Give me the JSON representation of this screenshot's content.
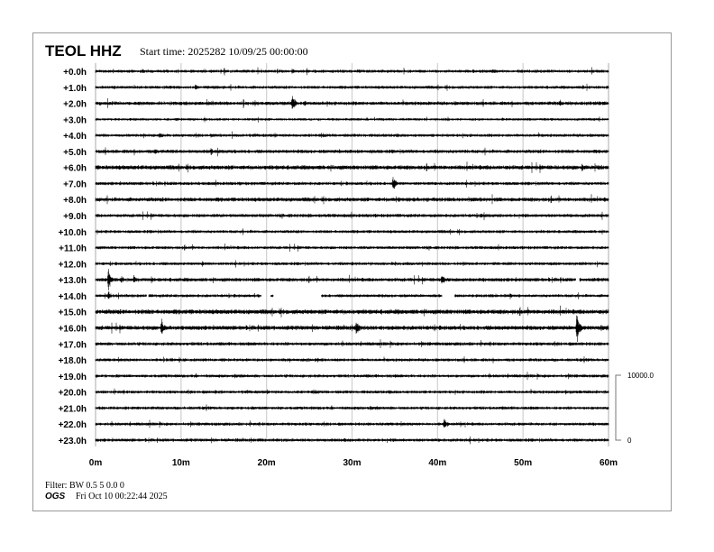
{
  "header": {
    "station": "TEOL HHZ",
    "start_time": "Start time: 2025282 10/09/25 00:00:00"
  },
  "footer": {
    "filter": "Filter: BW 0.5 5 0.0 0",
    "org": "OGS",
    "generated": "Fri Oct 10 00:22:44 2025"
  },
  "chart_data": {
    "type": "line",
    "title": "TEOL HHZ",
    "subtitle": "Start time: 2025282 10/09/25 00:00:00",
    "row_labels": [
      "+0.0h",
      "+1.0h",
      "+2.0h",
      "+3.0h",
      "+4.0h",
      "+5.0h",
      "+6.0h",
      "+7.0h",
      "+8.0h",
      "+9.0h",
      "+10.0h",
      "+11.0h",
      "+12.0h",
      "+13.0h",
      "+14.0h",
      "+15.0h",
      "+16.0h",
      "+17.0h",
      "+18.0h",
      "+19.0h",
      "+20.0h",
      "+21.0h",
      "+22.0h",
      "+23.0h"
    ],
    "x_ticks": [
      "0m",
      "10m",
      "20m",
      "30m",
      "40m",
      "50m",
      "60m"
    ],
    "xlim_minutes": [
      0,
      60
    ],
    "grid": true,
    "grid_color": "#d0d0d0",
    "trace_color": "#000000",
    "amplitude_scale": {
      "top_label": "10000.0",
      "bottom_label": "0",
      "counts": 10000
    },
    "noise_level_counts": [
      200,
      200,
      230,
      170,
      200,
      230,
      280,
      210,
      260,
      220,
      200,
      200,
      200,
      240,
      200,
      300,
      280,
      220,
      200,
      200,
      200,
      200,
      200,
      210
    ],
    "events": [
      {
        "hour": 0,
        "minute": 5.5,
        "amp": 500
      },
      {
        "hour": 0,
        "minute": 23.0,
        "amp": 500
      },
      {
        "hour": 0,
        "minute": 46.5,
        "amp": 550
      },
      {
        "hour": 1,
        "minute": 11.7,
        "amp": 700
      },
      {
        "hour": 1,
        "minute": 57.0,
        "amp": 400
      },
      {
        "hour": 2,
        "minute": 23.0,
        "amp": 1800
      },
      {
        "hour": 2,
        "minute": 24.5,
        "amp": 600
      },
      {
        "hour": 2,
        "minute": 54.3,
        "amp": 800
      },
      {
        "hour": 4,
        "minute": 7.5,
        "amp": 600
      },
      {
        "hour": 4,
        "minute": 13.5,
        "amp": 500
      },
      {
        "hour": 5,
        "minute": 7.0,
        "amp": 600
      },
      {
        "hour": 5,
        "minute": 13.5,
        "amp": 700
      },
      {
        "hour": 5,
        "minute": 28.5,
        "amp": 500
      },
      {
        "hour": 6,
        "minute": 56.9,
        "amp": 900
      },
      {
        "hour": 7,
        "minute": 10.3,
        "amp": 450
      },
      {
        "hour": 7,
        "minute": 34.8,
        "amp": 1400
      },
      {
        "hour": 8,
        "minute": 34.8,
        "amp": 600
      },
      {
        "hour": 8,
        "minute": 44.0,
        "amp": 400
      },
      {
        "hour": 9,
        "minute": 45.0,
        "amp": 450
      },
      {
        "hour": 12,
        "minute": 12.5,
        "amp": 500
      },
      {
        "hour": 12,
        "minute": 30.0,
        "amp": 500
      },
      {
        "hour": 13,
        "minute": 1.5,
        "amp": 2000
      },
      {
        "hour": 13,
        "minute": 3.0,
        "amp": 800
      },
      {
        "hour": 13,
        "minute": 4.5,
        "amp": 900
      },
      {
        "hour": 13,
        "minute": 40.5,
        "amp": 1300
      },
      {
        "hour": 14,
        "minute": 1.5,
        "amp": 900
      },
      {
        "hour": 14,
        "minute": 48.5,
        "amp": 600
      },
      {
        "hour": 16,
        "minute": 7.7,
        "amp": 1900
      },
      {
        "hour": 16,
        "minute": 30.5,
        "amp": 1700
      },
      {
        "hour": 16,
        "minute": 56.3,
        "amp": 2800
      },
      {
        "hour": 18,
        "minute": 26.0,
        "amp": 400
      },
      {
        "hour": 20,
        "minute": 14.0,
        "amp": 450
      },
      {
        "hour": 20,
        "minute": 55.0,
        "amp": 400
      },
      {
        "hour": 21,
        "minute": 3.5,
        "amp": 400
      },
      {
        "hour": 22,
        "minute": 40.8,
        "amp": 1400
      },
      {
        "hour": 22,
        "minute": 49.5,
        "amp": 400
      }
    ],
    "gaps": [
      {
        "hour": 13,
        "start_minute": 56.2,
        "end_minute": 56.6
      },
      {
        "hour": 14,
        "start_minute": 6.0,
        "end_minute": 6.2
      },
      {
        "hour": 14,
        "start_minute": 19.4,
        "end_minute": 20.5
      },
      {
        "hour": 14,
        "start_minute": 20.8,
        "end_minute": 26.4
      },
      {
        "hour": 14,
        "start_minute": 40.5,
        "end_minute": 42.0
      }
    ]
  }
}
